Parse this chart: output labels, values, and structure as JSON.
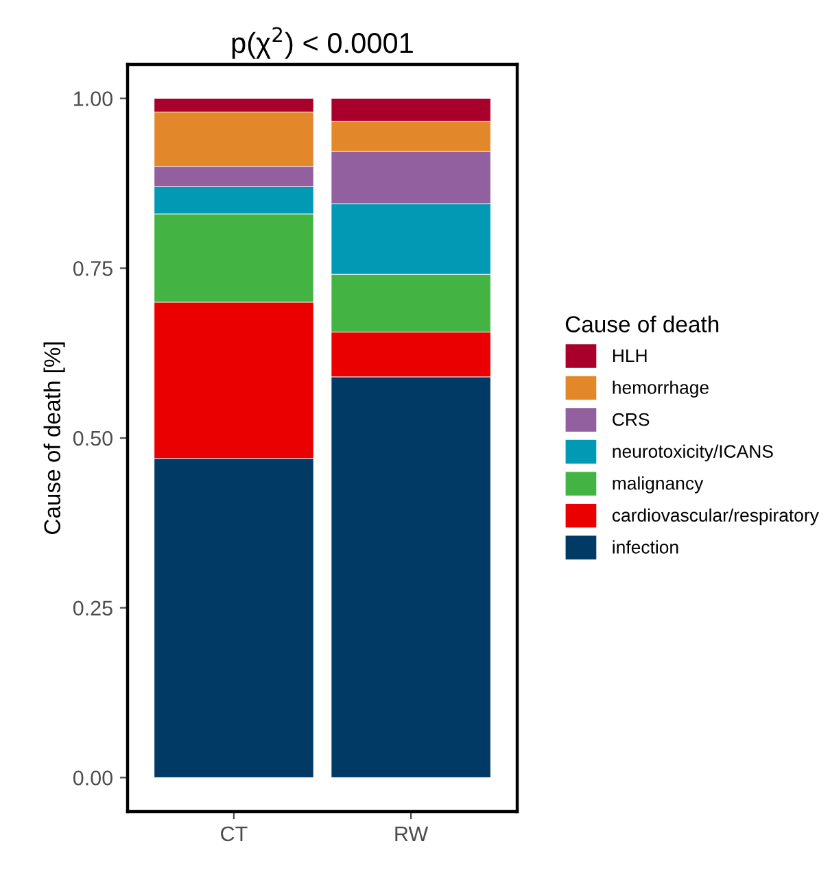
{
  "chart_data": {
    "type": "bar",
    "stacked": true,
    "title": "p(χ$^{2}$) < 0.0001",
    "ylabel": "Cause of death [%]",
    "legend_title": "Cause of death",
    "legend": "right",
    "categories": [
      "CT",
      "RW"
    ],
    "series": [
      {
        "name": "infection",
        "color": "#023a66",
        "values": [
          0.47,
          0.59
        ]
      },
      {
        "name": "cardiovascular/respiratory",
        "color": "#ea0000",
        "values": [
          0.23,
          0.066
        ]
      },
      {
        "name": "malignancy",
        "color": "#43b444",
        "values": [
          0.13,
          0.085
        ]
      },
      {
        "name": "neurotoxicity/ICANS",
        "color": "#0199b4",
        "values": [
          0.04,
          0.104
        ]
      },
      {
        "name": "CRS",
        "color": "#925f9f",
        "values": [
          0.03,
          0.077
        ]
      },
      {
        "name": "hemorrhage",
        "color": "#e2882b",
        "values": [
          0.08,
          0.044
        ]
      },
      {
        "name": "HLH",
        "color": "#a8002b",
        "values": [
          0.02,
          0.034
        ]
      }
    ],
    "ylim": [
      -0.05,
      1.05
    ],
    "yticks": [
      {
        "value": 0,
        "label": "0.00"
      },
      {
        "value": 0.25,
        "label": "0.25"
      },
      {
        "value": 0.5,
        "label": "0.50"
      },
      {
        "value": 0.75,
        "label": "0.75"
      },
      {
        "value": 1,
        "label": "1.00"
      }
    ],
    "grid": false
  }
}
